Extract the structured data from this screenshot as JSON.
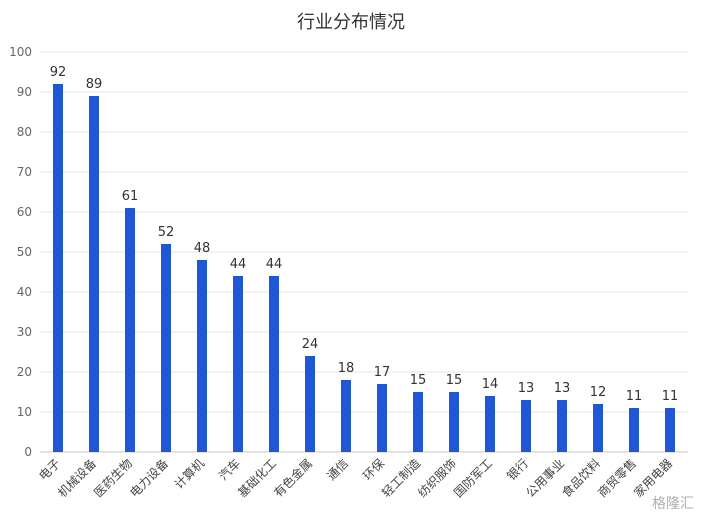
{
  "chart_data": {
    "type": "bar",
    "title": "行业分布情况",
    "categories": [
      "电子",
      "机械设备",
      "医药生物",
      "电力设备",
      "计算机",
      "汽车",
      "基础化工",
      "有色金属",
      "通信",
      "环保",
      "轻工制造",
      "纺织服饰",
      "国防军工",
      "银行",
      "公用事业",
      "食品饮料",
      "商贸零售",
      "家用电器"
    ],
    "values": [
      92,
      89,
      61,
      52,
      48,
      44,
      44,
      24,
      18,
      17,
      15,
      15,
      14,
      13,
      13,
      12,
      11,
      11
    ],
    "ylim": [
      0,
      100
    ],
    "yticks": [
      0,
      10,
      20,
      30,
      40,
      50,
      60,
      70,
      80,
      90,
      100
    ],
    "grid": true,
    "bar_color": "#1f57d6",
    "data_labels": true
  },
  "watermark": "格隆汇"
}
